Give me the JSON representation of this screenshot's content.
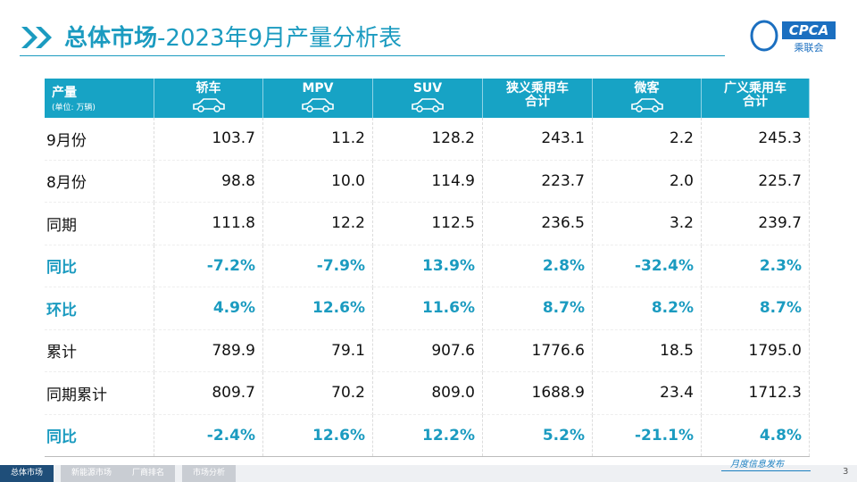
{
  "header": {
    "title_bold": "总体市场",
    "title_rest": "-2023年9月产量分析表",
    "logo_text": "CPCA",
    "logo_sub": "乘联会"
  },
  "table": {
    "corner": {
      "label": "产量",
      "unit": "(单位: 万辆)"
    },
    "columns": [
      [
        "轿车"
      ],
      [
        "MPV"
      ],
      [
        "SUV"
      ],
      [
        "狭义乘用车",
        "合计"
      ],
      [
        "微客"
      ],
      [
        "广义乘用车",
        "合计"
      ]
    ],
    "rows": [
      [
        "9月份",
        "103.7",
        "11.2",
        "128.2",
        "243.1",
        "2.2",
        "245.3"
      ],
      [
        "8月份",
        "98.8",
        "10.0",
        "114.9",
        "223.7",
        "2.0",
        "225.7"
      ],
      [
        "同期",
        "111.8",
        "12.2",
        "112.5",
        "236.5",
        "3.2",
        "239.7"
      ],
      [
        "同比",
        "-7.2%",
        "-7.9%",
        "13.9%",
        "2.8%",
        "-32.4%",
        "2.3%"
      ],
      [
        "环比",
        "4.9%",
        "12.6%",
        "11.6%",
        "8.7%",
        "8.2%",
        "8.7%"
      ],
      [
        "累计",
        "789.9",
        "79.1",
        "907.6",
        "1776.6",
        "18.5",
        "1795.0"
      ],
      [
        "同期累计",
        "809.7",
        "70.2",
        "809.0",
        "1688.9",
        "23.4",
        "1712.3"
      ],
      [
        "同比",
        "-2.4%",
        "12.6%",
        "12.2%",
        "5.2%",
        "-21.1%",
        "4.8%"
      ]
    ]
  },
  "footer": {
    "tabs": [
      "总体市场",
      "新能源市场",
      "厂商排名",
      "市场分析"
    ],
    "note": "月度信息发布",
    "page": "3"
  }
}
